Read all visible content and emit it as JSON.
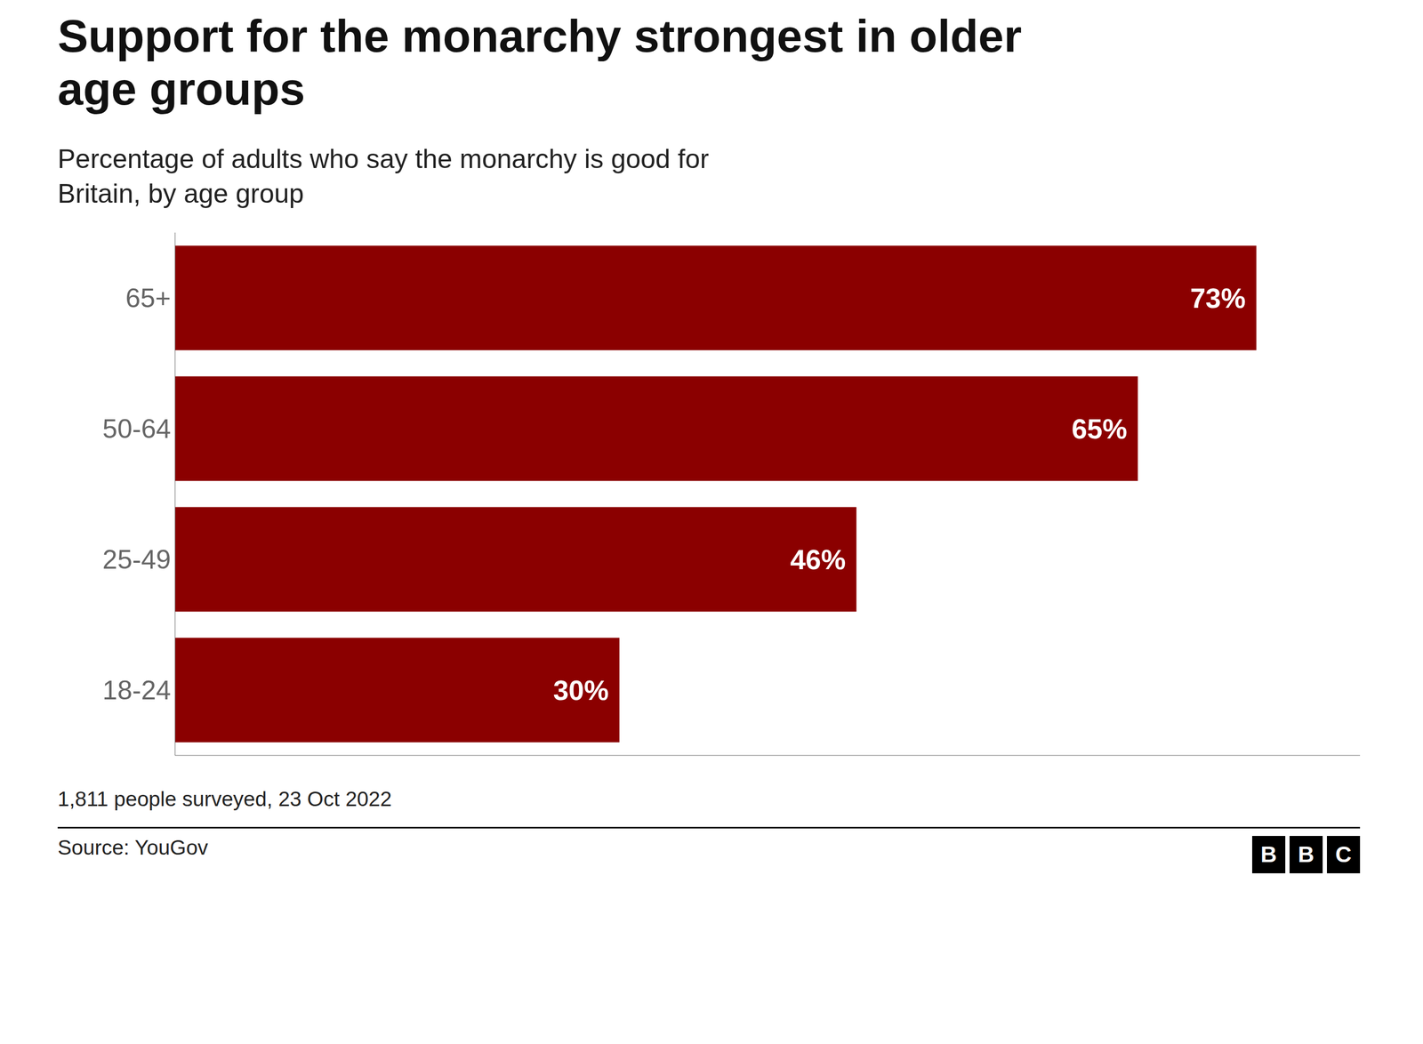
{
  "chart_data": {
    "type": "bar",
    "orientation": "horizontal",
    "title": "Support for the monarchy strongest in older\nage groups",
    "subtitle": "Percentage of adults who say the monarchy is good for\nBritain, by age group",
    "categories": [
      "65+",
      "50-64",
      "25-49",
      "18-24"
    ],
    "values": [
      73,
      65,
      46,
      30
    ],
    "value_labels": [
      "73%",
      "65%",
      "46%",
      "30%"
    ],
    "data_labels": true,
    "color": "#8B0000",
    "xlim": [
      0,
      80
    ],
    "xticks": [],
    "tick_labels": "y",
    "grid": false,
    "annotations": [
      "1,811 people surveyed, 23 Oct 2022",
      "Source: YouGov",
      "BBC"
    ]
  }
}
